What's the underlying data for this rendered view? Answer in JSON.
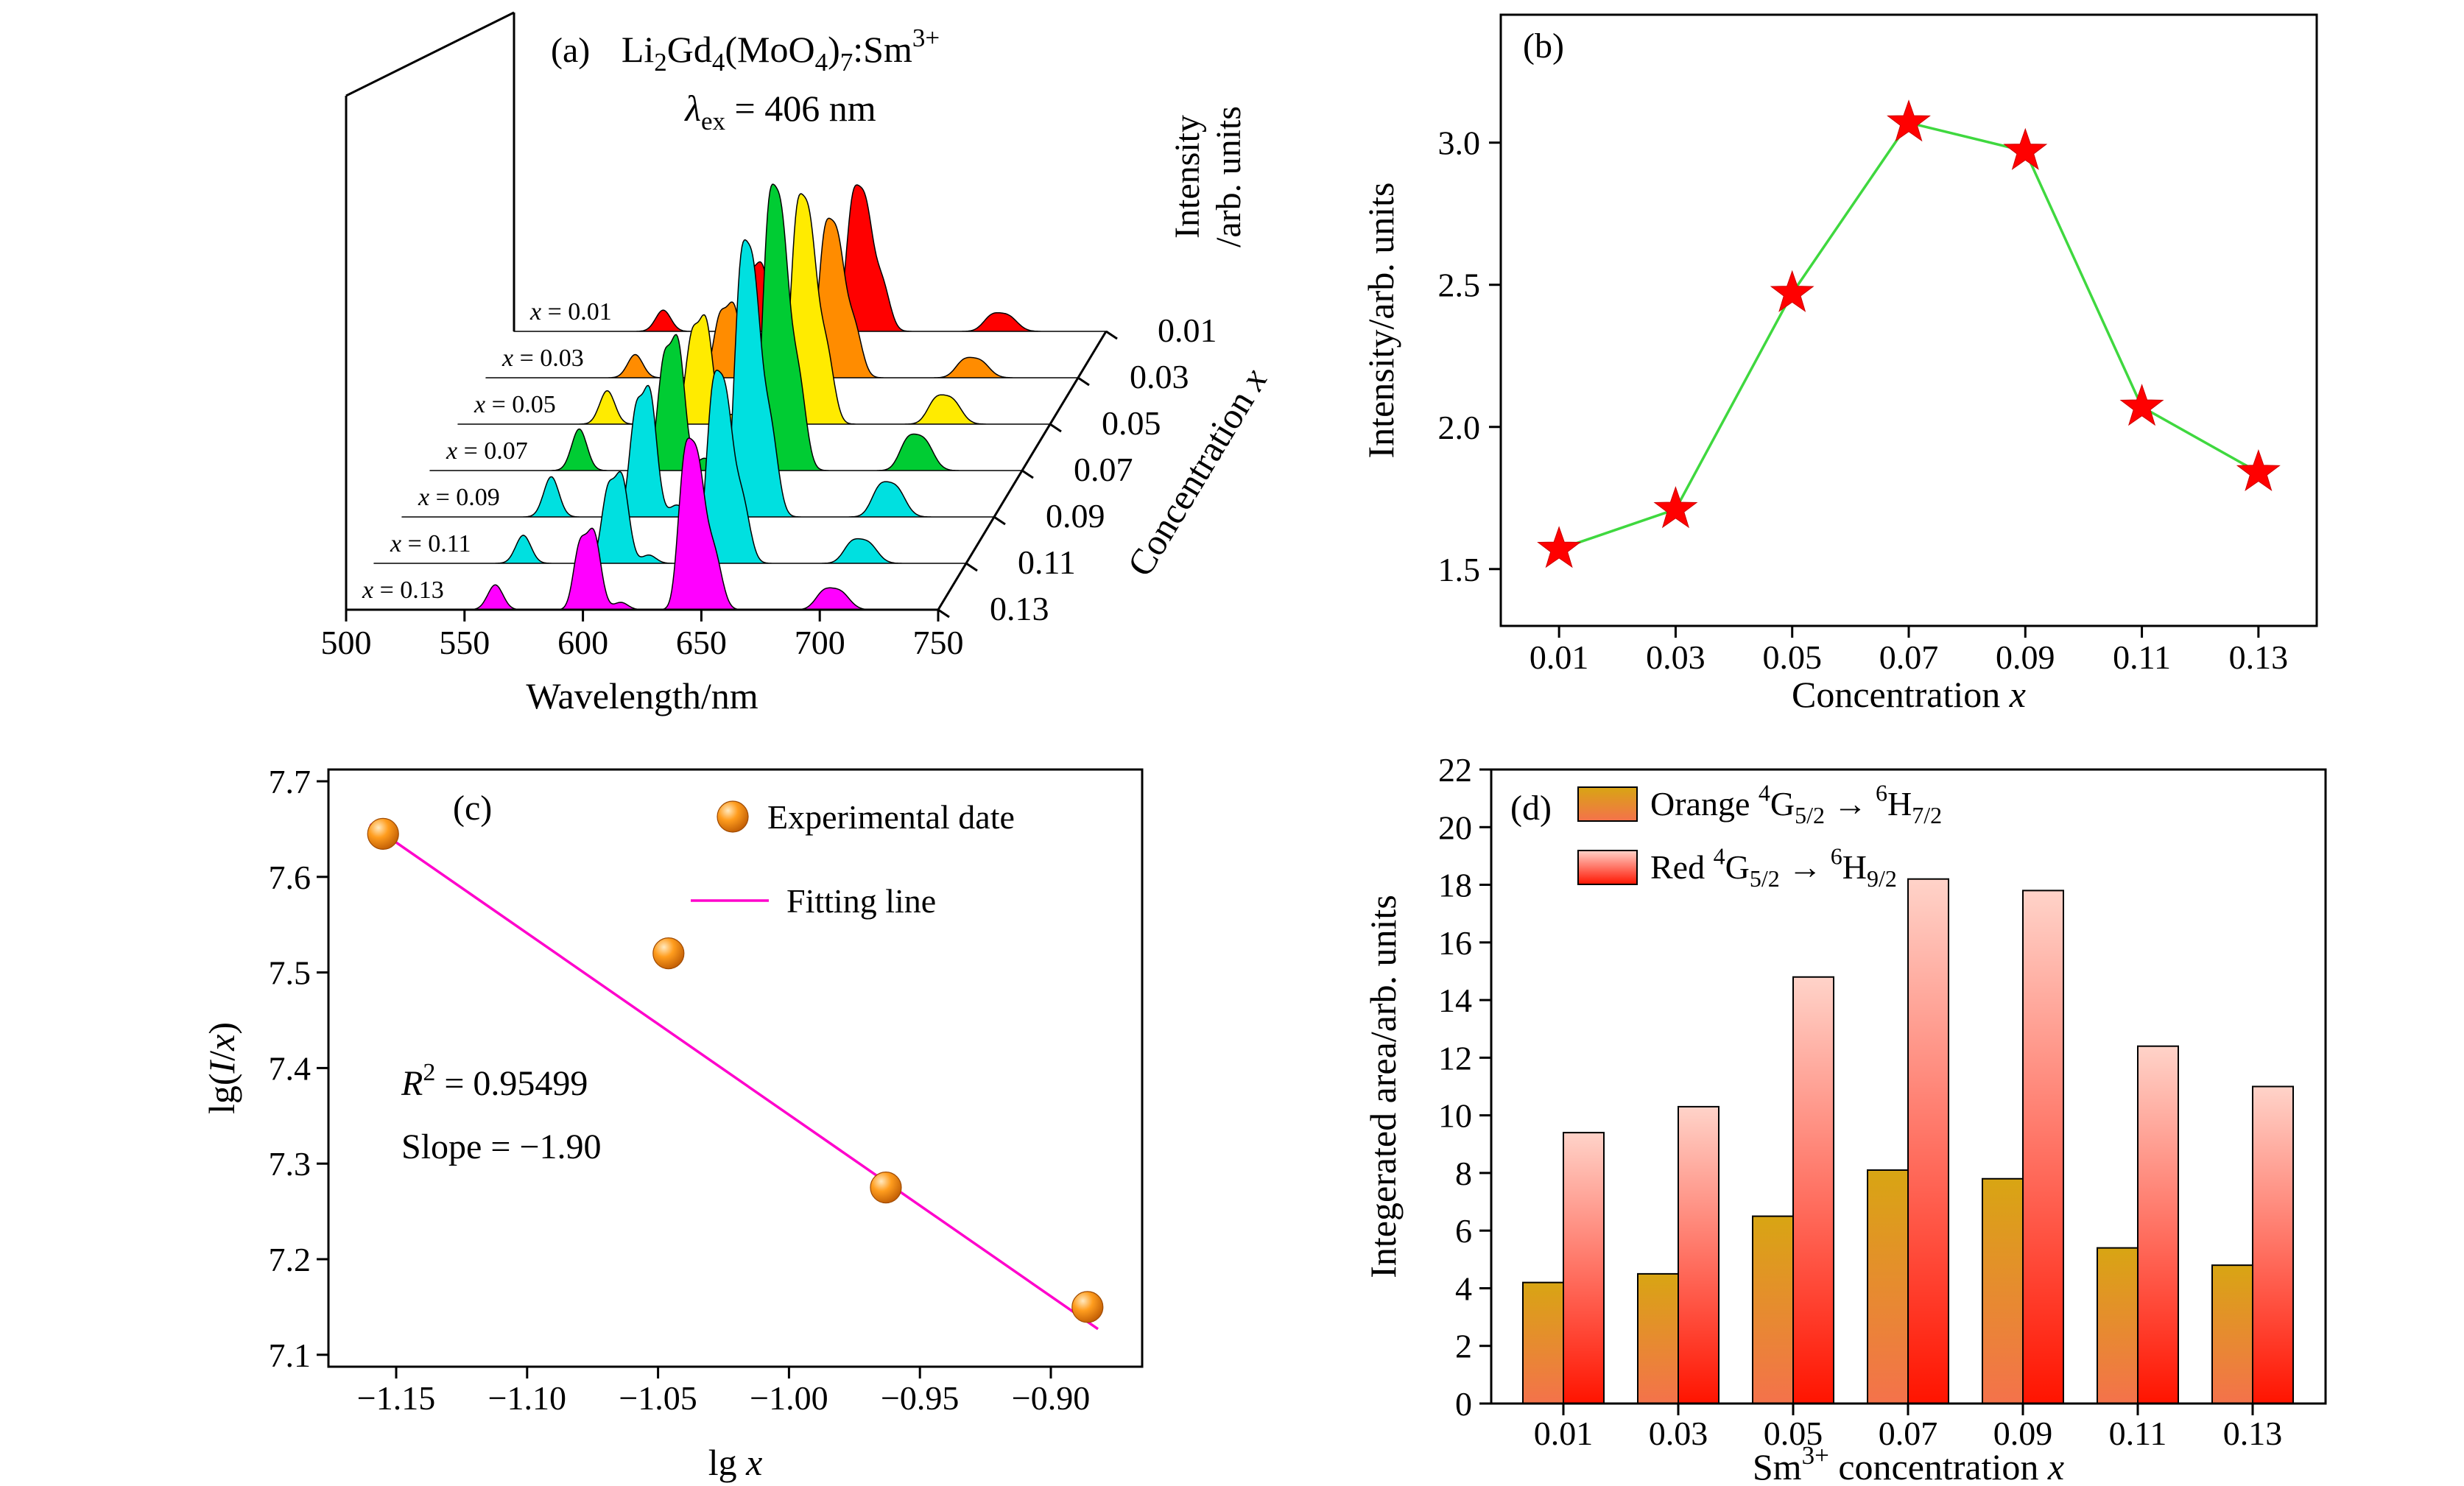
{
  "chart_data": [
    {
      "id": "a",
      "type": "area",
      "panel_label": "(a)",
      "title": [
        {
          "t": "Li"
        },
        {
          "t": "2",
          "sub": 1
        },
        {
          "t": "Gd"
        },
        {
          "t": "4",
          "sub": 1
        },
        {
          "t": "(MoO"
        },
        {
          "t": "4",
          "sub": 1
        },
        {
          "t": ")"
        },
        {
          "t": "7",
          "sub": 1
        },
        {
          "t": ":Sm"
        },
        {
          "t": "3+",
          "sup": 1
        }
      ],
      "subtitle": [
        {
          "t": "λ",
          "i": 1
        },
        {
          "t": "ex",
          "sub": 1
        },
        {
          "t": " = 406 nm"
        }
      ],
      "xlabel": "Wavelength/nm",
      "ylabel_lines": [
        "Intensity",
        "/arb. units"
      ],
      "zlabel": [
        {
          "t": "Concentration "
        },
        {
          "t": "x",
          "i": 1
        }
      ],
      "xlim": [
        500,
        750
      ],
      "x_tick_labels": [
        "500",
        "550",
        "600",
        "650",
        "700",
        "750"
      ],
      "z_tick_labels": [
        "0.01",
        "0.03",
        "0.05",
        "0.07",
        "0.09",
        "0.11",
        "0.13"
      ],
      "series_labels": [
        [
          {
            "t": "x",
            "i": 1
          },
          {
            "t": " = 0.01"
          }
        ],
        [
          {
            "t": "x",
            "i": 1
          },
          {
            "t": " = 0.03"
          }
        ],
        [
          {
            "t": "x",
            "i": 1
          },
          {
            "t": " = 0.05"
          }
        ],
        [
          {
            "t": "x",
            "i": 1
          },
          {
            "t": " = 0.07"
          }
        ],
        [
          {
            "t": "x",
            "i": 1
          },
          {
            "t": " = 0.09"
          }
        ],
        [
          {
            "t": "x",
            "i": 1
          },
          {
            "t": " = 0.11"
          }
        ],
        [
          {
            "t": "x",
            "i": 1
          },
          {
            "t": " = 0.13"
          }
        ]
      ],
      "series_colors": [
        "#FF0000",
        "#FF8C00",
        "#FFEB00",
        "#00CC33",
        "#00E0E0",
        "#00E0E0",
        "#FF00FF"
      ],
      "relative_peak_intensities": [
        1.57,
        1.71,
        2.47,
        3.07,
        2.97,
        2.07,
        1.84
      ],
      "emission_peaks_nm": [
        [
          563,
          0.17,
          3.2
        ],
        [
          598.5,
          0.4,
          2.6
        ],
        [
          604.5,
          0.52,
          3.0
        ],
        [
          616,
          0.05,
          3.0
        ],
        [
          642.5,
          0.78,
          2.6
        ],
        [
          648,
          1.0,
          3.4
        ],
        [
          655.5,
          0.36,
          3.2
        ],
        [
          701.5,
          0.11,
          3.5
        ],
        [
          708.5,
          0.12,
          4.0
        ]
      ]
    },
    {
      "id": "b",
      "type": "line",
      "panel_label": "(b)",
      "xlabel": [
        {
          "t": "Concentration "
        },
        {
          "t": "x",
          "i": 1
        }
      ],
      "ylabel": "Intensity/arb. units",
      "categories": [
        "0.01",
        "0.03",
        "0.05",
        "0.07",
        "0.09",
        "0.11",
        "0.13"
      ],
      "values": [
        1.57,
        1.71,
        2.47,
        3.07,
        2.97,
        2.07,
        1.84
      ],
      "y_tick_labels": [
        "1.5",
        "2.0",
        "2.5",
        "3.0"
      ],
      "ylim": [
        1.3,
        3.45
      ],
      "line_color": "#3FD83F",
      "marker": "star",
      "marker_color": "#FF0000"
    },
    {
      "id": "c",
      "type": "scatter",
      "panel_label": "(c)",
      "xlabel": [
        {
          "t": "lg "
        },
        {
          "t": "x",
          "i": 1
        }
      ],
      "ylabel": [
        {
          "t": "lg("
        },
        {
          "t": "I",
          "i": 1
        },
        {
          "t": "/"
        },
        {
          "t": "x",
          "i": 1
        },
        {
          "t": ")"
        }
      ],
      "points": [
        [
          -1.155,
          7.645
        ],
        [
          -1.046,
          7.52
        ],
        [
          -0.963,
          7.275
        ],
        [
          -0.886,
          7.15
        ]
      ],
      "fit_line": {
        "x1": -1.16,
        "y1": 7.655,
        "x2": -0.882,
        "y2": 7.127,
        "color": "#FF00CC"
      },
      "x_tick_labels": [
        "−1.15",
        "−1.10",
        "−1.05",
        "−1.00",
        "−0.95",
        "−0.90"
      ],
      "y_tick_labels": [
        "7.1",
        "7.2",
        "7.3",
        "7.4",
        "7.5",
        "7.6",
        "7.7"
      ],
      "xlim": [
        -1.176,
        -0.865
      ],
      "ylim": [
        7.088,
        7.712
      ],
      "marker_color": "#FF8C00",
      "legend": [
        {
          "marker": "sphere",
          "label": "Experimental date"
        },
        {
          "marker": "line",
          "label": "Fitting line"
        }
      ],
      "annotation_lines": [
        [
          {
            "t": "R",
            "i": 1
          },
          {
            "t": "2",
            "sup": 1
          },
          {
            "t": " = 0.95499"
          }
        ],
        [
          {
            "t": "Slope = −1.90"
          }
        ]
      ]
    },
    {
      "id": "d",
      "type": "bar",
      "panel_label": "(d)",
      "xlabel": [
        {
          "t": "Sm"
        },
        {
          "t": "3+",
          "sup": 1
        },
        {
          "t": " concentration "
        },
        {
          "t": "x",
          "i": 1
        }
      ],
      "ylabel": "Integerated area/arb. units",
      "categories": [
        "0.01",
        "0.03",
        "0.05",
        "0.07",
        "0.09",
        "0.11",
        "0.13"
      ],
      "series": [
        {
          "name": [
            {
              "t": "Orange "
            },
            {
              "t": "4",
              "sup": 1
            },
            {
              "t": "G"
            },
            {
              "t": "5/2",
              "sub": 1
            },
            {
              "t": " → "
            },
            {
              "t": "6",
              "sup": 1
            },
            {
              "t": "H"
            },
            {
              "t": "7/2",
              "sub": 1
            }
          ],
          "values": [
            4.2,
            4.5,
            6.5,
            8.1,
            7.8,
            5.4,
            4.8
          ],
          "gradient": [
            "#D8A513",
            "#F4724B"
          ]
        },
        {
          "name": [
            {
              "t": "Red "
            },
            {
              "t": "4",
              "sup": 1
            },
            {
              "t": "G"
            },
            {
              "t": "5/2",
              "sub": 1
            },
            {
              "t": " → "
            },
            {
              "t": "6",
              "sup": 1
            },
            {
              "t": "H"
            },
            {
              "t": "9/2",
              "sub": 1
            }
          ],
          "values": [
            9.4,
            10.3,
            14.8,
            18.2,
            17.8,
            12.4,
            11.0
          ],
          "gradient": [
            "#FFD3C9",
            "#FF1400"
          ]
        }
      ],
      "y_tick_labels": [
        "0",
        "2",
        "4",
        "6",
        "8",
        "10",
        "12",
        "14",
        "16",
        "18",
        "20",
        "22"
      ],
      "ylim": [
        0,
        22
      ]
    }
  ]
}
